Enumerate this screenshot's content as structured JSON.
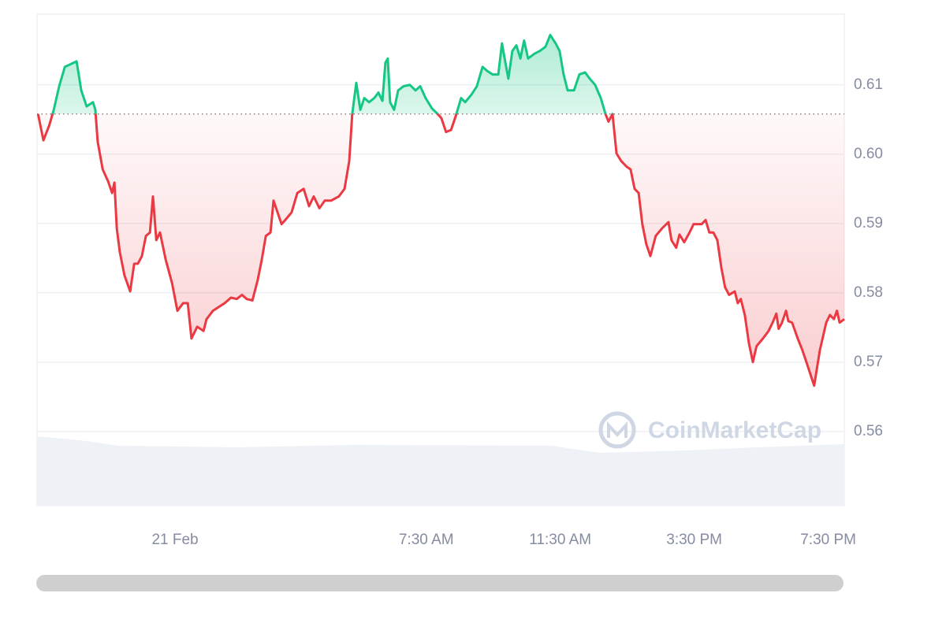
{
  "chart_data": {
    "type": "line",
    "x": [
      -4.09,
      -3.93,
      -3.76,
      -3.62,
      -3.46,
      -3.29,
      -3.11,
      -2.94,
      -2.8,
      -2.64,
      -2.45,
      -2.38,
      -2.31,
      -2.16,
      -2.0,
      -1.88,
      -1.81,
      -1.74,
      -1.65,
      -1.51,
      -1.34,
      -1.22,
      -1.11,
      -0.99,
      -0.87,
      -0.75,
      -0.66,
      -0.56,
      -0.45,
      -0.28,
      -0.09,
      0.07,
      0.24,
      0.38,
      0.49,
      0.66,
      0.85,
      0.94,
      1.13,
      1.32,
      1.48,
      1.67,
      1.84,
      2.0,
      2.14,
      2.31,
      2.47,
      2.59,
      2.71,
      2.85,
      2.94,
      3.06,
      3.18,
      3.29,
      3.48,
      3.65,
      3.84,
      4.0,
      4.14,
      4.31,
      4.47,
      4.66,
      4.89,
      5.06,
      5.2,
      5.29,
      5.41,
      5.53,
      5.65,
      5.79,
      5.95,
      6.07,
      6.19,
      6.28,
      6.35,
      6.42,
      6.54,
      6.66,
      6.82,
      7.01,
      7.18,
      7.32,
      7.48,
      7.67,
      7.84,
      7.95,
      8.09,
      8.24,
      8.38,
      8.54,
      8.66,
      8.85,
      9.01,
      9.18,
      9.32,
      9.48,
      9.65,
      9.76,
      9.84,
      9.95,
      10.07,
      10.19,
      10.31,
      10.42,
      10.54,
      10.73,
      10.89,
      11.06,
      11.2,
      11.36,
      11.48,
      11.6,
      11.72,
      11.91,
      12.07,
      12.24,
      12.38,
      12.54,
      12.71,
      12.85,
      12.94,
      13.06,
      13.18,
      13.32,
      13.48,
      13.6,
      13.72,
      13.84,
      13.95,
      14.07,
      14.19,
      14.35,
      14.54,
      14.73,
      14.82,
      14.96,
      15.06,
      15.2,
      15.36,
      15.48,
      15.72,
      15.84,
      15.95,
      16.07,
      16.19,
      16.31,
      16.42,
      16.54,
      16.71,
      16.8,
      16.89,
      17.01,
      17.13,
      17.25,
      17.36,
      17.55,
      17.72,
      17.84,
      17.95,
      18.02,
      18.12,
      18.24,
      18.31,
      18.42,
      18.59,
      18.73,
      18.89,
      19.08,
      19.25,
      19.44,
      19.55,
      19.67,
      19.76,
      19.84,
      19.98
    ],
    "values": [
      0.6058,
      0.602,
      0.6041,
      0.6064,
      0.6098,
      0.6126,
      0.613,
      0.6134,
      0.6092,
      0.6069,
      0.6075,
      0.6064,
      0.6018,
      0.5978,
      0.5961,
      0.5944,
      0.5959,
      0.5893,
      0.5859,
      0.5825,
      0.5802,
      0.5842,
      0.5842,
      0.5853,
      0.5882,
      0.5887,
      0.5939,
      0.5876,
      0.5887,
      0.5848,
      0.5814,
      0.5774,
      0.5785,
      0.5785,
      0.5734,
      0.5751,
      0.5745,
      0.5762,
      0.5774,
      0.578,
      0.5785,
      0.5793,
      0.5791,
      0.5797,
      0.5791,
      0.5789,
      0.5819,
      0.5848,
      0.5882,
      0.5887,
      0.5933,
      0.5916,
      0.5899,
      0.5905,
      0.5916,
      0.5944,
      0.595,
      0.5925,
      0.5939,
      0.5922,
      0.5933,
      0.5933,
      0.5939,
      0.595,
      0.599,
      0.6058,
      0.6103,
      0.6064,
      0.6081,
      0.6075,
      0.6081,
      0.6089,
      0.6077,
      0.6132,
      0.6138,
      0.6075,
      0.6064,
      0.6092,
      0.6098,
      0.61,
      0.6092,
      0.6098,
      0.6081,
      0.6066,
      0.6058,
      0.6052,
      0.6032,
      0.6035,
      0.6055,
      0.6081,
      0.6075,
      0.6086,
      0.6098,
      0.6126,
      0.612,
      0.6115,
      0.6115,
      0.616,
      0.6138,
      0.6109,
      0.6149,
      0.6157,
      0.6138,
      0.6164,
      0.6138,
      0.6145,
      0.6149,
      0.6155,
      0.6172,
      0.616,
      0.6149,
      0.6115,
      0.6092,
      0.6092,
      0.6115,
      0.6118,
      0.6109,
      0.61,
      0.6081,
      0.6058,
      0.6047,
      0.6058,
      0.6001,
      0.599,
      0.5982,
      0.5978,
      0.595,
      0.5944,
      0.5899,
      0.587,
      0.5853,
      0.5882,
      0.5893,
      0.5902,
      0.5876,
      0.5865,
      0.5884,
      0.5873,
      0.5887,
      0.5899,
      0.5899,
      0.5905,
      0.5887,
      0.5887,
      0.5876,
      0.5836,
      0.5808,
      0.5797,
      0.5802,
      0.5785,
      0.5791,
      0.5768,
      0.5728,
      0.57,
      0.5723,
      0.5734,
      0.5745,
      0.5757,
      0.577,
      0.5748,
      0.5757,
      0.5774,
      0.5759,
      0.5757,
      0.5734,
      0.5717,
      0.5694,
      0.5666,
      0.5717,
      0.5757,
      0.5768,
      0.5762,
      0.5774,
      0.5757,
      0.5762
    ],
    "baseline": 0.6058,
    "color_above": "#16c784",
    "color_below": "#ea3943",
    "xlim": [
      -4.12,
      19.98
    ],
    "xticks": [
      {
        "value": 0,
        "label": "21 Feb"
      },
      {
        "value": 7.5,
        "label": "7:30 AM"
      },
      {
        "value": 11.5,
        "label": "11:30 AM"
      },
      {
        "value": 15.5,
        "label": "3:30 PM"
      },
      {
        "value": 19.5,
        "label": "7:30 PM"
      }
    ],
    "ylim": [
      0.5493,
      0.6202
    ],
    "yticks": [
      0.56,
      0.57,
      0.58,
      0.59,
      {
        "value": 0.6,
        "label": "0.60"
      },
      0.61
    ],
    "grid": true,
    "watermark": "CoinMarketCap"
  }
}
